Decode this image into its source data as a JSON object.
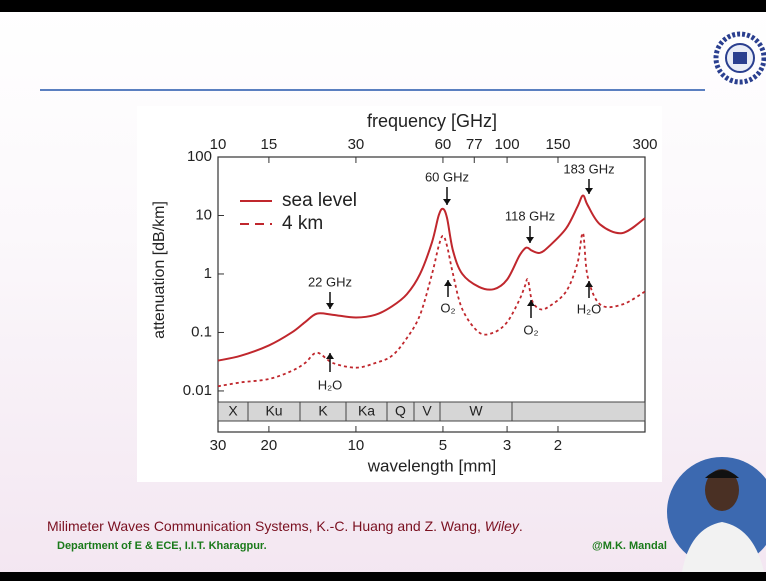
{
  "chart_data": {
    "type": "line",
    "x_title": "frequency [GHz]",
    "x2_title": "wavelength [mm]",
    "y_title": "attenuation [dB/km]",
    "x": [
      10,
      12,
      15,
      18,
      20,
      22,
      25,
      30,
      35,
      40,
      45,
      50,
      55,
      58,
      60,
      62,
      65,
      70,
      80,
      90,
      100,
      110,
      115,
      118,
      122,
      130,
      140,
      160,
      175,
      183,
      190,
      210,
      250,
      300
    ],
    "series": [
      {
        "name": "sea level",
        "color": "#c0272d",
        "dash": false,
        "values": [
          0.033,
          0.04,
          0.06,
          0.1,
          0.15,
          0.21,
          0.2,
          0.18,
          0.2,
          0.28,
          0.45,
          1.0,
          3.5,
          10,
          13,
          9,
          2.5,
          1.0,
          0.6,
          0.55,
          0.8,
          2.0,
          2.7,
          2.8,
          2.5,
          2.3,
          3,
          6,
          14,
          22,
          15,
          7,
          5,
          9
        ]
      },
      {
        "name": "4 km",
        "color": "#c0272d",
        "dash": true,
        "values": [
          0.012,
          0.014,
          0.016,
          0.022,
          0.03,
          0.045,
          0.03,
          0.025,
          0.03,
          0.04,
          0.08,
          0.2,
          1.0,
          3.0,
          4.5,
          3.0,
          1.0,
          0.25,
          0.1,
          0.1,
          0.15,
          0.35,
          0.6,
          0.8,
          0.35,
          0.25,
          0.28,
          0.5,
          1.5,
          5.0,
          0.9,
          0.3,
          0.3,
          0.5
        ]
      }
    ],
    "xlim": [
      10,
      300
    ],
    "xticks": [
      10,
      15,
      30,
      60,
      77,
      100,
      150,
      300
    ],
    "xlog": true,
    "x2lim": [
      30,
      1
    ],
    "x2ticks": [
      30,
      20,
      10,
      5,
      3,
      2
    ],
    "ylim": [
      0.007,
      100
    ],
    "yticks": [
      100,
      10,
      1,
      0.1,
      0.01
    ],
    "ylog": true,
    "legend": "upper-left",
    "bands": [
      "X",
      "Ku",
      "K",
      "Ka",
      "Q",
      "V",
      "W"
    ],
    "annotations": [
      "22 GHz",
      "60 GHz",
      "118 GHz",
      "183 GHz",
      "H₂O",
      "O₂",
      "O₂",
      "H₂O"
    ]
  },
  "footer": {
    "reference": [
      "Milimeter Waves Communication Systems, K.-C. Huang and Z. Wang, ",
      "Wiley",
      "."
    ],
    "department": "Department of E & ECE, I.I.T. Kharagpur.",
    "credit": "@M.K. Mandal"
  }
}
